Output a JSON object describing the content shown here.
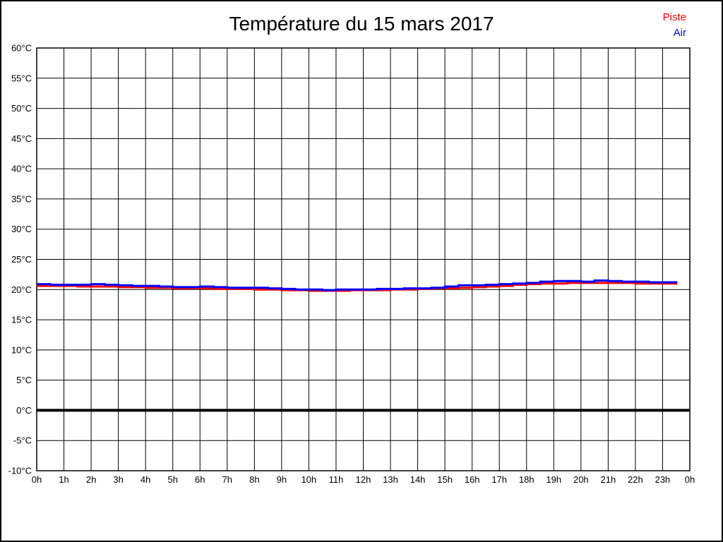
{
  "page": {
    "title": "Température du 15 mars 2017"
  },
  "legend": {
    "items": [
      {
        "label": "Piste",
        "color": "#ff0000"
      },
      {
        "label": "Air",
        "color": "#0000ff"
      }
    ]
  },
  "chart_data": {
    "type": "line",
    "title": "Température du 15 mars 2017",
    "unit": "°C",
    "xlabel": "",
    "ylabel": "",
    "ylim": [
      -10,
      60
    ],
    "y_tick_step": 5,
    "y_tick_values": [
      60,
      55,
      50,
      45,
      40,
      35,
      30,
      25,
      20,
      15,
      10,
      5,
      0,
      -5,
      -10
    ],
    "y_tick_labels": [
      "60°C",
      "55°C",
      "50°C",
      "45°C",
      "40°C",
      "35°C",
      "30°C",
      "25°C",
      "20°C",
      "15°C",
      "10°C",
      "5°C",
      "0°C",
      "-5°C",
      "-10°C"
    ],
    "xlim_hours": [
      0,
      24
    ],
    "x_tick_hours": [
      0,
      1,
      2,
      3,
      4,
      5,
      6,
      7,
      8,
      9,
      10,
      11,
      12,
      13,
      14,
      15,
      16,
      17,
      18,
      19,
      20,
      21,
      22,
      23,
      24
    ],
    "x_tick_labels": [
      "0h",
      "1h",
      "2h",
      "3h",
      "4h",
      "5h",
      "6h",
      "7h",
      "8h",
      "9h",
      "10h",
      "11h",
      "12h",
      "13h",
      "14h",
      "15h",
      "16h",
      "17h",
      "18h",
      "19h",
      "20h",
      "21h",
      "22h",
      "23h",
      "0h"
    ],
    "grid": true,
    "zero_line_value": 0,
    "legend_position": "top-right",
    "x_hours": [
      0,
      0.5,
      1,
      1.5,
      2,
      2.5,
      3,
      3.5,
      4,
      4.5,
      5,
      5.5,
      6,
      6.5,
      7,
      7.5,
      8,
      8.5,
      9,
      9.5,
      10,
      10.5,
      11,
      11.5,
      12,
      12.5,
      13,
      13.5,
      14,
      14.5,
      15,
      15.5,
      16,
      16.5,
      17,
      17.5,
      18,
      18.5,
      19,
      19.5,
      20,
      20.5,
      21,
      21.5,
      22,
      22.5,
      23,
      23.5
    ],
    "series": [
      {
        "name": "Piste",
        "color": "#ff0000",
        "values": [
          20.6,
          20.6,
          20.6,
          20.5,
          20.5,
          20.5,
          20.4,
          20.4,
          20.3,
          20.3,
          20.2,
          20.2,
          20.2,
          20.1,
          20.1,
          20.1,
          20.0,
          20.0,
          19.9,
          19.9,
          19.8,
          19.8,
          19.8,
          19.9,
          19.9,
          19.9,
          20.0,
          20.0,
          20.1,
          20.2,
          20.2,
          20.3,
          20.4,
          20.5,
          20.6,
          20.8,
          20.9,
          21.0,
          21.0,
          21.1,
          21.1,
          21.1,
          21.1,
          21.1,
          21.0,
          21.0,
          21.0,
          20.8
        ]
      },
      {
        "name": "Air",
        "color": "#0000ff",
        "values": [
          20.9,
          20.8,
          20.8,
          20.8,
          20.9,
          20.8,
          20.7,
          20.6,
          20.6,
          20.5,
          20.4,
          20.4,
          20.5,
          20.4,
          20.3,
          20.3,
          20.3,
          20.2,
          20.1,
          20.0,
          20.0,
          19.9,
          20.0,
          20.0,
          20.0,
          20.1,
          20.1,
          20.2,
          20.2,
          20.3,
          20.5,
          20.7,
          20.7,
          20.8,
          20.9,
          21.0,
          21.1,
          21.3,
          21.4,
          21.4,
          21.3,
          21.5,
          21.4,
          21.3,
          21.3,
          21.2,
          21.2,
          21.1
        ]
      }
    ]
  }
}
